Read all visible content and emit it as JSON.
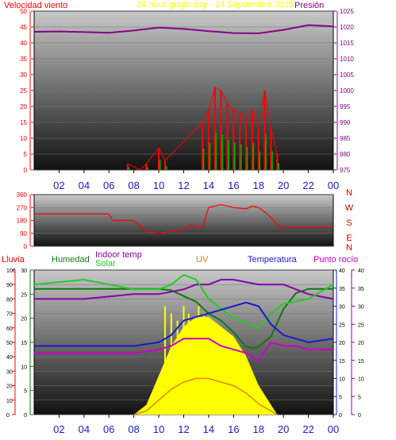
{
  "header": {
    "wind_label": "Velocidad viento",
    "title": "24 hour graph day - 14 Septiembre 2025",
    "pressure_label": "Presión"
  },
  "bottom_labels": {
    "rain": "Lluvia",
    "humidity": "Humedad",
    "indoor": "Indoor temp",
    "solar": "Solar",
    "uv": "UV",
    "temp": "Temperatura",
    "dew": "Punto rocío"
  },
  "colors": {
    "wind_red": "#ff0000",
    "gust_green": "#00aa00",
    "pressure": "#880088",
    "title": "#ffff00",
    "humidity": "#117711",
    "indoor": "#8800aa",
    "solar": "#22cc22",
    "uv": "#dd8800",
    "temperature": "#1a1acc",
    "dew": "#cc00cc",
    "rain_axis": "#ff0000",
    "solar_fill": "#ffff00"
  },
  "chart_data": [
    {
      "type": "line",
      "name": "wind_pressure",
      "x_ticks": [
        "02",
        "04",
        "06",
        "08",
        "10",
        "12",
        "14",
        "16",
        "18",
        "20",
        "22",
        "00"
      ],
      "y_left_ticks": [
        "0",
        "5",
        "10",
        "15",
        "20",
        "25",
        "30",
        "35",
        "40",
        "45",
        "50"
      ],
      "y_left_range": [
        0,
        50
      ],
      "y_right_ticks": [
        "975",
        "980",
        "985",
        "990",
        "995",
        "1000",
        "1005",
        "1010",
        "1015",
        "1020",
        "1025"
      ],
      "y_right_range": [
        975,
        1025
      ],
      "series": [
        {
          "name": "Presión",
          "x": [
            0,
            2,
            4,
            6,
            8,
            10,
            12,
            14,
            16,
            18,
            20,
            22,
            24
          ],
          "values": [
            1018.5,
            1018.6,
            1018.4,
            1018.2,
            1018.9,
            1019.8,
            1019.4,
            1018.7,
            1018.1,
            1018.0,
            1019.1,
            1020.6,
            1020.2
          ]
        },
        {
          "name": "Velocidad viento",
          "x": [
            7.5,
            8.5,
            9.0,
            10.0,
            10.5,
            13.5,
            14.0,
            14.5,
            15.0,
            15.5,
            16.0,
            16.5,
            17.0,
            17.5,
            18.0,
            18.5,
            19.0,
            19.5
          ],
          "values": [
            2,
            0,
            2,
            7,
            3,
            15,
            19,
            26,
            25,
            21,
            19,
            18,
            16,
            19,
            13,
            25,
            13,
            5
          ]
        }
      ]
    },
    {
      "type": "line",
      "name": "wind_direction",
      "y_ticks": [
        "0",
        "90",
        "180",
        "270",
        "360"
      ],
      "y_range": [
        0,
        360
      ],
      "compass": [
        "N",
        "W",
        "S",
        "E",
        "N"
      ],
      "series": [
        {
          "name": "direction",
          "x": [
            0,
            6,
            6.3,
            8,
            9,
            10,
            11,
            12,
            12.5,
            13,
            13.5,
            14,
            15,
            16,
            17,
            17.5,
            18,
            18.5,
            19,
            19.5,
            20,
            22,
            24
          ],
          "values": [
            225,
            225,
            180,
            180,
            100,
            90,
            105,
            110,
            150,
            130,
            130,
            270,
            290,
            270,
            260,
            280,
            270,
            240,
            200,
            150,
            130,
            130,
            130
          ]
        }
      ]
    },
    {
      "type": "line",
      "name": "temperature_humidity_solar",
      "x_ticks": [
        "02",
        "04",
        "06",
        "08",
        "10",
        "12",
        "14",
        "16",
        "18",
        "20",
        "22",
        "00"
      ],
      "y_rain_ticks": [
        "0",
        "10",
        "20",
        "30",
        "40",
        "50",
        "60",
        "70",
        "80",
        "90",
        "100"
      ],
      "y_rain_range": [
        0,
        100
      ],
      "y_temp_ticks": [
        "0",
        "5",
        "10",
        "15",
        "20",
        "25",
        "30"
      ],
      "y_temp_range": [
        0,
        30
      ],
      "y_solar_ticks": [
        "0",
        "5",
        "10",
        "15",
        "20",
        "25",
        "30",
        "35",
        "40"
      ],
      "y_solar_range": [
        0,
        40
      ],
      "y_dew_ticks": [
        "0",
        "5",
        "10",
        "15",
        "20",
        "25",
        "30",
        "35",
        "40"
      ],
      "y_dew_range": [
        0,
        40
      ],
      "series": [
        {
          "name": "Humedad",
          "x": [
            0,
            6,
            8,
            10,
            11,
            12,
            13,
            14,
            15,
            16,
            17,
            17.5,
            18,
            19,
            20,
            21,
            22,
            24
          ],
          "values": [
            87,
            87,
            87,
            87,
            86,
            82,
            78,
            70,
            65,
            57,
            47,
            46,
            47,
            54,
            73,
            84,
            87,
            87
          ]
        },
        {
          "name": "Indoor temp",
          "x": [
            0,
            4,
            8,
            10,
            12,
            13,
            14,
            15,
            16,
            18,
            20,
            22,
            24
          ],
          "values": [
            24,
            24,
            25,
            25,
            26,
            27,
            27,
            28,
            28,
            27,
            27,
            25,
            24
          ]
        },
        {
          "name": "Solar",
          "x": [
            0,
            4,
            8,
            10,
            11,
            12,
            13,
            14,
            15,
            16,
            17,
            18,
            19,
            20,
            22,
            24
          ],
          "values": [
            27,
            28,
            26,
            26,
            27,
            29,
            28,
            24,
            22,
            20,
            19,
            18,
            21,
            23,
            24,
            27
          ]
        },
        {
          "name": "Temperatura",
          "x": [
            0,
            4,
            8,
            10,
            11,
            12,
            13,
            14,
            15,
            16,
            17,
            18,
            19,
            20,
            21,
            22,
            24
          ],
          "values": [
            19,
            19,
            19,
            20,
            22,
            26,
            27,
            28,
            29,
            30,
            31,
            30,
            25,
            22,
            21,
            20,
            21
          ]
        },
        {
          "name": "Punto rocío",
          "x": [
            0,
            4,
            8,
            10,
            11,
            12,
            13,
            14,
            15,
            16,
            17,
            18,
            19,
            20,
            21,
            22,
            24
          ],
          "values": [
            17,
            17,
            17,
            18,
            19,
            21,
            21,
            21,
            19,
            18,
            17,
            15,
            20,
            19,
            19,
            18,
            18
          ]
        },
        {
          "name": "UV",
          "x": [
            8,
            9,
            10,
            11,
            12,
            13,
            14,
            15,
            16,
            17,
            18,
            19,
            19.5
          ],
          "values": [
            0,
            1,
            4,
            7,
            9,
            10,
            10,
            9,
            8,
            6,
            3,
            1,
            0
          ]
        }
      ]
    }
  ]
}
